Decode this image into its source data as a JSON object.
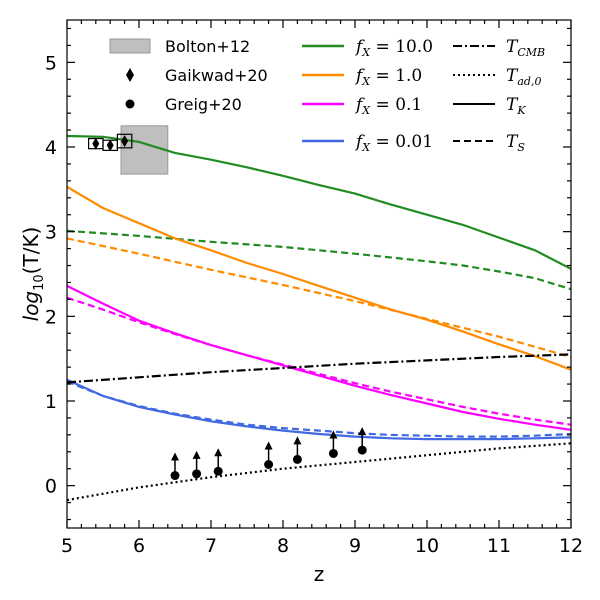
{
  "chart_data": {
    "type": "line",
    "title": "",
    "xlabel": "z",
    "ylabel_base": "log",
    "ylabel_sub": "10",
    "ylabel_rest": "(T/K)",
    "xlim": [
      5,
      12
    ],
    "ylim": [
      -0.5,
      5.5
    ],
    "x_ticks": [
      5,
      6,
      7,
      8,
      9,
      10,
      11,
      12
    ],
    "y_ticks": [
      0,
      1,
      2,
      3,
      4,
      5
    ],
    "grid": false,
    "legend_placement": "top",
    "legend": {
      "observations": [
        {
          "label": "Bolton+12",
          "marker": "rect",
          "color": "#bfbfbf"
        },
        {
          "label": "Gaikwad+20",
          "marker": "thin-diamond",
          "color": "#000000"
        },
        {
          "label": "Greig+20",
          "marker": "circle",
          "color": "#000000"
        }
      ],
      "models": [
        {
          "label_base": "f",
          "label_sub": "X",
          "label_val": " = 10.0",
          "color": "#228b22"
        },
        {
          "label_base": "f",
          "label_sub": "X",
          "label_val": " = 1.0",
          "color": "#ff8c00"
        },
        {
          "label_base": "f",
          "label_sub": "X",
          "label_val": " = 0.1",
          "color": "#ff00ff"
        },
        {
          "label_base": "f",
          "label_sub": "X",
          "label_val": " = 0.01",
          "color": "#4169e1"
        }
      ],
      "linestyles": [
        {
          "label_base": "T",
          "label_sub": "CMB",
          "dash": "dashdot"
        },
        {
          "label_base": "T",
          "label_sub": "ad,0",
          "dash": "dotted"
        },
        {
          "label_base": "T",
          "label_sub": "K",
          "dash": "solid"
        },
        {
          "label_base": "T",
          "label_sub": "S",
          "dash": "dashed"
        }
      ]
    },
    "series": [
      {
        "name": "T_K, f_X = 10.0",
        "color": "#228b22",
        "dash": "solid",
        "x": [
          5,
          5.5,
          6,
          6.5,
          7,
          7.5,
          8,
          8.5,
          9,
          9.5,
          10,
          10.5,
          11,
          11.5,
          12
        ],
        "y": [
          4.13,
          4.12,
          4.06,
          3.93,
          3.85,
          3.76,
          3.66,
          3.55,
          3.45,
          3.32,
          3.2,
          3.08,
          2.93,
          2.78,
          2.56
        ]
      },
      {
        "name": "T_S, f_X = 10.0",
        "color": "#228b22",
        "dash": "dashed",
        "x": [
          5,
          6,
          7,
          8,
          9,
          10,
          10.5,
          11,
          11.5,
          12
        ],
        "y": [
          3.01,
          2.95,
          2.88,
          2.82,
          2.74,
          2.65,
          2.6,
          2.53,
          2.45,
          2.32
        ]
      },
      {
        "name": "T_K, f_X = 1.0",
        "color": "#ff8c00",
        "dash": "solid",
        "x": [
          5,
          5.5,
          6,
          6.5,
          7,
          7.5,
          8,
          8.5,
          9,
          9.5,
          10,
          10.5,
          11,
          11.5,
          12
        ],
        "y": [
          3.53,
          3.28,
          3.1,
          2.92,
          2.78,
          2.63,
          2.5,
          2.36,
          2.22,
          2.08,
          1.96,
          1.82,
          1.67,
          1.53,
          1.37
        ]
      },
      {
        "name": "T_S, f_X = 1.0",
        "color": "#ff8c00",
        "dash": "dashed",
        "x": [
          5,
          6,
          7,
          8,
          9,
          10,
          11,
          11.5,
          12
        ],
        "y": [
          2.92,
          2.74,
          2.55,
          2.37,
          2.18,
          1.97,
          1.76,
          1.64,
          1.52
        ]
      },
      {
        "name": "T_K, f_X = 0.1",
        "color": "#ff00ff",
        "dash": "solid",
        "x": [
          5,
          5.5,
          6,
          6.5,
          7,
          7.5,
          8,
          8.5,
          9,
          9.5,
          10,
          10.5,
          11,
          11.5,
          12
        ],
        "y": [
          2.36,
          2.15,
          1.95,
          1.8,
          1.66,
          1.54,
          1.42,
          1.3,
          1.18,
          1.07,
          0.97,
          0.87,
          0.79,
          0.72,
          0.66
        ]
      },
      {
        "name": "T_S, f_X = 0.1",
        "color": "#ff00ff",
        "dash": "dashed",
        "x": [
          5,
          5.5,
          6,
          6.5,
          7,
          7.5,
          8,
          8.5,
          9,
          9.5,
          10,
          10.5,
          11,
          11.5,
          12
        ],
        "y": [
          2.22,
          2.08,
          1.93,
          1.79,
          1.66,
          1.54,
          1.43,
          1.32,
          1.21,
          1.11,
          1.02,
          0.93,
          0.85,
          0.78,
          0.72
        ]
      },
      {
        "name": "T_K, f_X = 0.01",
        "color": "#4169e1",
        "dash": "solid",
        "x": [
          5,
          5.5,
          6,
          6.5,
          7,
          7.5,
          8,
          8.5,
          9,
          9.5,
          10,
          10.5,
          11,
          11.5,
          12
        ],
        "y": [
          1.25,
          1.06,
          0.93,
          0.84,
          0.76,
          0.7,
          0.65,
          0.61,
          0.58,
          0.56,
          0.55,
          0.55,
          0.55,
          0.56,
          0.57
        ]
      },
      {
        "name": "T_S, f_X = 0.01",
        "color": "#4169e1",
        "dash": "dashed",
        "x": [
          5,
          5.5,
          6,
          6.5,
          7,
          7.5,
          8,
          8.5,
          9,
          9.5,
          10,
          10.5,
          11,
          11.5,
          12
        ],
        "y": [
          1.23,
          1.06,
          0.94,
          0.85,
          0.78,
          0.72,
          0.68,
          0.65,
          0.62,
          0.6,
          0.59,
          0.58,
          0.58,
          0.59,
          0.61
        ]
      },
      {
        "name": "T_CMB",
        "color": "#000000",
        "dash": "dashdot",
        "x": [
          5,
          6,
          7,
          8,
          9,
          10,
          11,
          12
        ],
        "y": [
          1.22,
          1.28,
          1.34,
          1.39,
          1.44,
          1.48,
          1.52,
          1.55
        ]
      },
      {
        "name": "T_ad,0",
        "color": "#000000",
        "dash": "dotted",
        "x": [
          5,
          6,
          7,
          8,
          9,
          10,
          11,
          12
        ],
        "y": [
          -0.17,
          -0.02,
          0.1,
          0.2,
          0.28,
          0.36,
          0.44,
          0.5
        ]
      }
    ],
    "bolton_box": {
      "x0": 5.75,
      "x1": 6.4,
      "y0": 3.68,
      "y1": 4.25,
      "color": "#bfbfbf"
    },
    "gaikwad_points": [
      {
        "x": 5.4,
        "y": 4.04,
        "xerr": 0.1,
        "yerr": 0.06
      },
      {
        "x": 5.6,
        "y": 4.02,
        "xerr": 0.1,
        "yerr": 0.06
      },
      {
        "x": 5.8,
        "y": 4.07,
        "xerr": 0.1,
        "yerr": 0.08
      }
    ],
    "greig_points": [
      {
        "x": 6.5,
        "y": 0.12
      },
      {
        "x": 6.8,
        "y": 0.14
      },
      {
        "x": 7.1,
        "y": 0.17
      },
      {
        "x": 7.8,
        "y": 0.25
      },
      {
        "x": 8.2,
        "y": 0.31
      },
      {
        "x": 8.7,
        "y": 0.38
      },
      {
        "x": 9.1,
        "y": 0.42
      }
    ]
  }
}
